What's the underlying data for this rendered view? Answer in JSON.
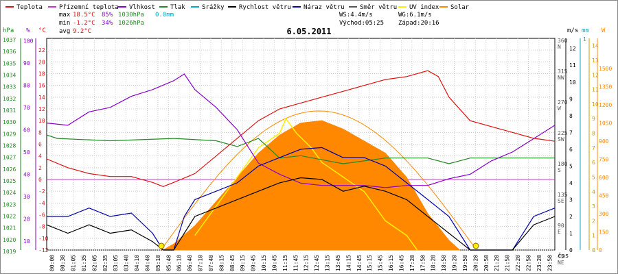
{
  "legend": [
    {
      "label": "Teplota",
      "color": "#e01010"
    },
    {
      "label": "Přízemní teplota",
      "color": "#cc33cc"
    },
    {
      "label": "Vlhkost",
      "color": "#8800cc"
    },
    {
      "label": "Tlak",
      "color": "#228822"
    },
    {
      "label": "Srážky",
      "color": "#00aacc"
    },
    {
      "label": "Rychlost větru",
      "color": "#000000"
    },
    {
      "label": "Náraz větru",
      "color": "#0000aa"
    },
    {
      "label": "Směr větru",
      "color": "#555555"
    },
    {
      "label": "UV index",
      "color": "#ffee00"
    },
    {
      "label": "Solar",
      "color": "#ff8800"
    }
  ],
  "stats": {
    "max_label": "max",
    "max_temp": "18.5°C",
    "max_hum": "85%",
    "max_press": "1030hPa",
    "max_rain": "0.0mm",
    "min_label": "min",
    "min_temp": "-1.2°C",
    "min_hum": "34%",
    "min_press": "1026hPa",
    "avg_label": "avg",
    "avg_temp": "9.2°C",
    "ws": "WS:4.4m/s",
    "wg": "WG:6.1m/s",
    "sunrise": "Východ:05:25",
    "sunset": "Západ:20:16"
  },
  "chart_data": {
    "type": "line",
    "title": "6.05.2011",
    "xlabel": "čas",
    "x_ticks": [
      "00:00",
      "00:30",
      "01:05",
      "01:35",
      "02:05",
      "02:35",
      "03:05",
      "03:40",
      "04:10",
      "04:40",
      "05:10",
      "05:40",
      "06:10",
      "06:40",
      "07:10",
      "07:40",
      "08:15",
      "08:45",
      "09:15",
      "09:45",
      "10:15",
      "10:45",
      "11:15",
      "11:45",
      "12:15",
      "12:45",
      "13:15",
      "13:45",
      "14:15",
      "14:45",
      "15:15",
      "15:45",
      "16:15",
      "16:45",
      "17:20",
      "17:50",
      "18:20",
      "18:50",
      "19:20",
      "19:50",
      "20:20",
      "20:50",
      "21:20",
      "21:50",
      "22:20",
      "22:50",
      "23:20",
      "23:50"
    ],
    "axes_left": {
      "pressure": {
        "unit": "hPa",
        "ticks": [
          "1037",
          "1036",
          "1035",
          "1034",
          "1033",
          "1032",
          "1031",
          "1030",
          "1029",
          "1028",
          "1027",
          "1026",
          "1025",
          "1024",
          "1023",
          "1022",
          "1021",
          "1020",
          "1019"
        ]
      },
      "humidity": {
        "unit": "%",
        "ticks": [
          "100",
          "90",
          "80",
          "70",
          "60",
          "50",
          "40",
          "30",
          "20",
          "10"
        ]
      },
      "temperature": {
        "unit": "°C",
        "ticks": [
          "22",
          "20",
          "18",
          "16",
          "14",
          "12",
          "10",
          "8",
          "6",
          "4",
          "2",
          "0",
          "-2",
          "-4",
          "-6",
          "-8",
          "-10",
          "-12"
        ]
      }
    },
    "axes_right": {
      "direction": {
        "ticks": [
          "360",
          "315",
          "270",
          "225",
          "180",
          "135",
          "90",
          "45"
        ],
        "labels": [
          "N",
          "NW",
          "W",
          "SW",
          "S",
          "SE",
          "E",
          "NE"
        ]
      },
      "wind": {
        "unit": "m/s",
        "ticks": [
          "12",
          "11",
          "10",
          "9",
          "8",
          "7",
          "6",
          "5",
          "4",
          "3",
          "2",
          "1",
          "0"
        ]
      },
      "rain": {
        "unit": "mm",
        "ticks": [
          "1"
        ]
      },
      "uv": {
        "unit": "",
        "ticks": [
          "14",
          "13",
          "12",
          "11",
          "10",
          "9",
          "8",
          "7",
          "6",
          "5",
          "4",
          "3",
          "2",
          "1",
          "0"
        ]
      },
      "solar": {
        "unit": "W",
        "ticks": [
          "1500",
          "1350",
          "1200",
          "1050",
          "900",
          "750",
          "600",
          "450",
          "300",
          "150",
          "0"
        ]
      }
    },
    "series": [
      {
        "name": "Teplota",
        "unit": "°C",
        "x": [
          0,
          1,
          2,
          3,
          4,
          5,
          5.5,
          6,
          7,
          8,
          9,
          10,
          11,
          12,
          13,
          14,
          15,
          16,
          17,
          18,
          18.5,
          19,
          20,
          21,
          22,
          23,
          24
        ],
        "values": [
          3.5,
          2,
          1,
          0.5,
          0.5,
          -0.5,
          -1.2,
          -0.5,
          1,
          4,
          7,
          10,
          12,
          13,
          14,
          15,
          16,
          17,
          17.5,
          18.5,
          17.5,
          14,
          10,
          9,
          8,
          7,
          6.5
        ]
      },
      {
        "name": "Vlhkost",
        "unit": "%",
        "x": [
          0,
          1,
          2,
          3,
          4,
          5,
          6,
          6.5,
          7,
          8,
          9,
          10,
          11,
          12,
          13,
          14,
          15,
          16,
          17,
          18,
          19,
          20,
          21,
          22,
          23,
          24
        ],
        "values": [
          63,
          62,
          68,
          70,
          75,
          78,
          82,
          85,
          78,
          70,
          60,
          45,
          40,
          36,
          35,
          35,
          35,
          34,
          35,
          35,
          38,
          40,
          46,
          50,
          56,
          62
        ]
      },
      {
        "name": "Tlak",
        "unit": "hPa",
        "x": [
          0,
          0.5,
          3,
          6,
          8,
          9,
          10,
          11,
          12,
          14,
          16,
          18,
          19,
          20,
          22,
          24
        ],
        "values": [
          1029,
          1028.7,
          1028.5,
          1028.7,
          1028.5,
          1028,
          1028.7,
          1027,
          1027.2,
          1026.5,
          1027,
          1027,
          1026.5,
          1027,
          1027,
          1027
        ]
      },
      {
        "name": "Rychlost větru",
        "unit": "m/s",
        "x": [
          0,
          1,
          2,
          3,
          4,
          5,
          5.5,
          6,
          6.5,
          7,
          8,
          9,
          10,
          11,
          12,
          13,
          14,
          15,
          16,
          17,
          18,
          19,
          19.5,
          20,
          21,
          22,
          23,
          24
        ],
        "values": [
          1.5,
          1,
          1.5,
          1,
          1.2,
          0.5,
          0,
          0,
          1,
          2,
          2.5,
          3,
          3.5,
          4,
          4.3,
          4.2,
          3.5,
          3.8,
          3.5,
          3,
          2,
          1,
          0.5,
          0,
          0,
          0,
          1.5,
          2
        ]
      },
      {
        "name": "Náraz větru",
        "unit": "m/s",
        "x": [
          0,
          1,
          2,
          3,
          4,
          5,
          5.5,
          6,
          6.5,
          7,
          8,
          9,
          10,
          11,
          12,
          13,
          14,
          15,
          16,
          17,
          18,
          19,
          19.5,
          20,
          21,
          22,
          23,
          24
        ],
        "values": [
          2,
          2,
          2.5,
          2,
          2.2,
          1,
          0,
          0,
          2,
          3,
          3.5,
          4,
          5,
          5.5,
          6,
          6.1,
          5.5,
          5.5,
          5,
          4,
          3,
          2,
          1,
          0,
          0,
          0,
          2,
          2.5
        ]
      },
      {
        "name": "Solar",
        "unit": "W",
        "x": [
          5.5,
          6,
          7,
          8,
          9,
          10,
          11,
          12,
          13,
          14,
          15,
          16,
          17,
          18,
          19,
          19.5
        ],
        "values": [
          0,
          50,
          200,
          400,
          600,
          800,
          950,
          1050,
          1070,
          1000,
          900,
          800,
          600,
          300,
          80,
          0
        ]
      },
      {
        "name": "UV index",
        "unit": "",
        "x": [
          7,
          8,
          9,
          10,
          11,
          11.3,
          11.8,
          12.5,
          13,
          14,
          15,
          16,
          17,
          17.5
        ],
        "values": [
          1,
          3,
          5,
          7,
          8,
          9,
          8,
          7,
          6,
          5,
          4,
          2,
          1,
          0
        ]
      }
    ],
    "grid": true
  }
}
